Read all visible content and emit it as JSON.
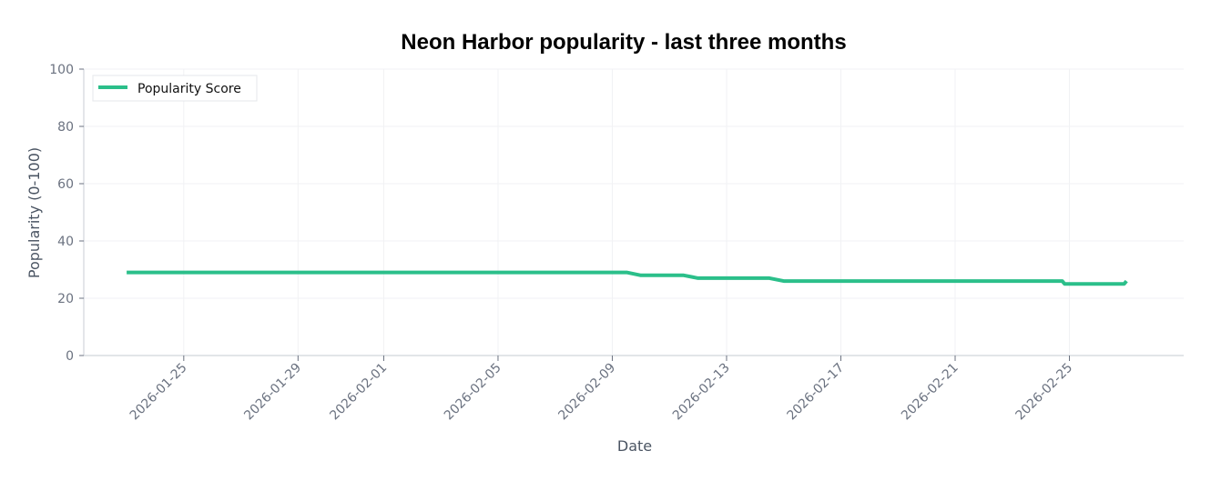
{
  "chart_data": {
    "type": "line",
    "title": "Neon Harbor popularity - last three months",
    "xlabel": "Date",
    "ylabel": "Popularity (0-100)",
    "ylim": [
      0,
      100
    ],
    "yticks": [
      "0",
      "20",
      "40",
      "60",
      "80",
      "100"
    ],
    "xticks": [
      "2026-01-25",
      "2026-01-29",
      "2026-02-01",
      "2026-02-05",
      "2026-02-09",
      "2026-02-13",
      "2026-02-17",
      "2026-02-21",
      "2026-02-25"
    ],
    "xlim": [
      "2026-01-21T12:00",
      "2026-03-01T00:00"
    ],
    "grid": true,
    "legend_position": "top-left",
    "colors": {
      "series": "#2bbf8a",
      "axis": "#d1d5db",
      "grid": "#f1f2f4"
    },
    "series": [
      {
        "name": "Popularity Score",
        "points": [
          {
            "x": "2026-01-23T00:00",
            "y": 29
          },
          {
            "x": "2026-02-09T12:00",
            "y": 29
          },
          {
            "x": "2026-02-10T00:00",
            "y": 28
          },
          {
            "x": "2026-02-11T12:00",
            "y": 28
          },
          {
            "x": "2026-02-12T00:00",
            "y": 27
          },
          {
            "x": "2026-02-14T12:00",
            "y": 27
          },
          {
            "x": "2026-02-15T00:00",
            "y": 26
          },
          {
            "x": "2026-02-24T18:00",
            "y": 26
          },
          {
            "x": "2026-02-24T20:00",
            "y": 25
          },
          {
            "x": "2026-02-26T22:00",
            "y": 25
          },
          {
            "x": "2026-02-27T00:00",
            "y": 26
          }
        ]
      }
    ]
  }
}
